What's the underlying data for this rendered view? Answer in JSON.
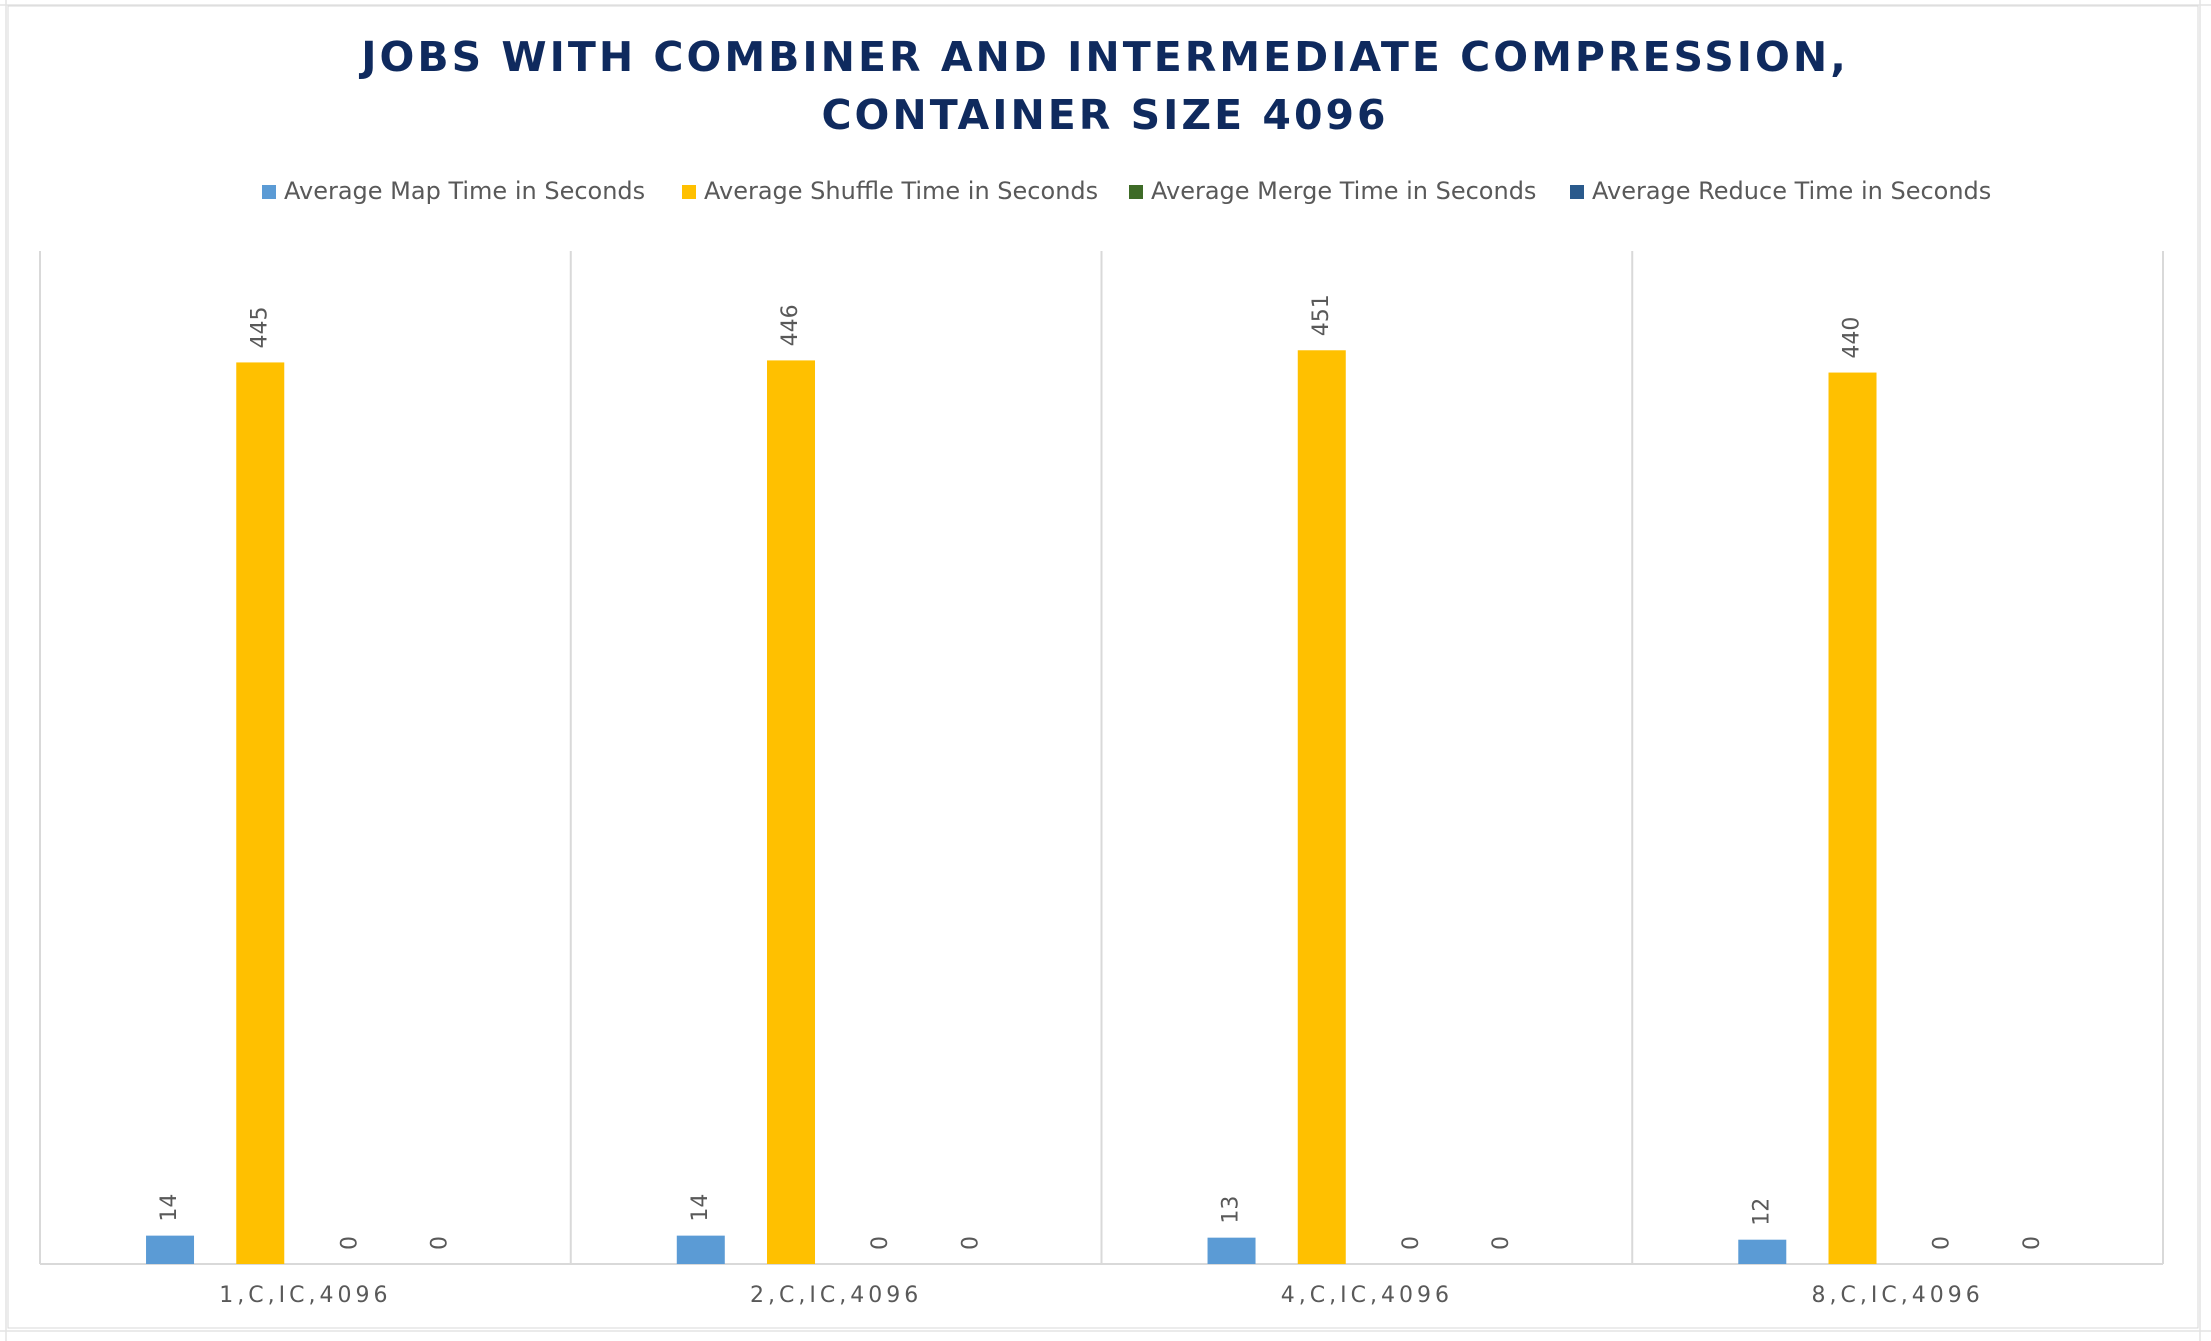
{
  "chart_data": {
    "type": "bar",
    "title": "JOBS WITH COMBINER AND INTERMEDIATE COMPRESSION, CONTAINER SIZE 4096",
    "categories": [
      "1,C,IC,4096",
      "2,C,IC,4096",
      "4,C,IC,4096",
      "8,C,IC,4096"
    ],
    "series": [
      {
        "name": "Average Map Time in Seconds",
        "color": "#5b9bd5",
        "values": [
          14,
          14,
          13,
          12
        ]
      },
      {
        "name": "Average Shuffle Time in Seconds",
        "color": "#ffc000",
        "values": [
          445,
          446,
          451,
          440
        ]
      },
      {
        "name": "Average Merge Time in Seconds",
        "color": "#3e6b27",
        "values": [
          0,
          0,
          0,
          0
        ]
      },
      {
        "name": "Average Reduce Time in Seconds",
        "color": "#2a5a8c",
        "values": [
          0,
          0,
          0,
          0
        ]
      }
    ],
    "ylim": [
      0,
      500
    ],
    "legend": "top"
  }
}
